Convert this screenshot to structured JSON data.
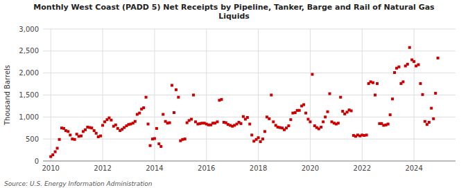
{
  "chart_data": {
    "type": "scatter",
    "title": "Monthly West Coast (PADD 5) Net Receipts by Pipeline, Tanker, Barge and Rail of Natural Gas\nLiquids",
    "y_label": "Thousand Barrels",
    "source": "Source: U.S. Energy Information Administration",
    "color": "#cc0000",
    "marker": "square",
    "grid": true,
    "xlim": [
      2009.7,
      2025.6
    ],
    "xticks": [
      2010,
      2012,
      2014,
      2016,
      2018,
      2020,
      2022,
      2024
    ],
    "ylim": [
      0,
      3000
    ],
    "yticks": [
      0,
      500,
      {
        "value": 1000,
        "label": "1,000"
      },
      {
        "value": 1500,
        "label": "1,500"
      },
      {
        "value": 2000,
        "label": "2,000"
      },
      {
        "value": 2500,
        "label": "2,500"
      },
      {
        "value": 3000,
        "label": "3,000"
      }
    ],
    "x": [
      2010.0,
      2010.08,
      2010.17,
      2010.25,
      2010.33,
      2010.42,
      2010.5,
      2010.58,
      2010.67,
      2010.75,
      2010.83,
      2010.92,
      2011.0,
      2011.08,
      2011.17,
      2011.25,
      2011.33,
      2011.42,
      2011.5,
      2011.58,
      2011.67,
      2011.75,
      2011.83,
      2011.92,
      2012.0,
      2012.08,
      2012.17,
      2012.25,
      2012.33,
      2012.42,
      2012.5,
      2012.58,
      2012.67,
      2012.75,
      2012.83,
      2012.92,
      2013.0,
      2013.08,
      2013.17,
      2013.25,
      2013.33,
      2013.42,
      2013.5,
      2013.58,
      2013.67,
      2013.75,
      2013.83,
      2013.92,
      2014.0,
      2014.08,
      2014.17,
      2014.25,
      2014.33,
      2014.42,
      2014.5,
      2014.58,
      2014.67,
      2014.75,
      2014.83,
      2014.92,
      2015.0,
      2015.08,
      2015.17,
      2015.25,
      2015.33,
      2015.42,
      2015.5,
      2015.58,
      2015.67,
      2015.75,
      2015.83,
      2015.92,
      2016.0,
      2016.08,
      2016.17,
      2016.25,
      2016.33,
      2016.42,
      2016.5,
      2016.58,
      2016.67,
      2016.75,
      2016.83,
      2016.92,
      2017.0,
      2017.08,
      2017.17,
      2017.25,
      2017.33,
      2017.42,
      2017.5,
      2017.58,
      2017.67,
      2017.75,
      2017.83,
      2017.92,
      2018.0,
      2018.08,
      2018.17,
      2018.25,
      2018.33,
      2018.42,
      2018.5,
      2018.58,
      2018.67,
      2018.75,
      2018.83,
      2018.92,
      2019.0,
      2019.08,
      2019.17,
      2019.25,
      2019.33,
      2019.42,
      2019.5,
      2019.58,
      2019.67,
      2019.75,
      2019.83,
      2019.92,
      2020.0,
      2020.08,
      2020.17,
      2020.25,
      2020.33,
      2020.42,
      2020.5,
      2020.58,
      2020.67,
      2020.75,
      2020.83,
      2020.92,
      2021.0,
      2021.08,
      2021.17,
      2021.25,
      2021.33,
      2021.42,
      2021.5,
      2021.58,
      2021.67,
      2021.75,
      2021.83,
      2021.92,
      2022.0,
      2022.08,
      2022.17,
      2022.25,
      2022.33,
      2022.42,
      2022.5,
      2022.58,
      2022.67,
      2022.75,
      2022.83,
      2022.92,
      2023.0,
      2023.08,
      2023.17,
      2023.25,
      2023.33,
      2023.42,
      2023.5,
      2023.58,
      2023.67,
      2023.75,
      2023.83,
      2023.92,
      2024.0,
      2024.08,
      2024.17,
      2024.25,
      2024.33,
      2024.42,
      2024.5,
      2024.58,
      2024.67,
      2024.75,
      2024.83,
      2024.92
    ],
    "values": [
      100,
      140,
      210,
      290,
      490,
      750,
      740,
      690,
      670,
      590,
      500,
      490,
      610,
      560,
      570,
      670,
      710,
      770,
      760,
      750,
      690,
      630,
      550,
      570,
      810,
      890,
      940,
      980,
      930,
      790,
      820,
      740,
      690,
      720,
      760,
      800,
      830,
      840,
      860,
      900,
      1060,
      1090,
      1180,
      1210,
      1450,
      840,
      350,
      500,
      510,
      740,
      390,
      330,
      1060,
      900,
      860,
      870,
      1720,
      1100,
      1620,
      1450,
      460,
      490,
      500,
      870,
      920,
      950,
      1500,
      890,
      840,
      850,
      860,
      860,
      840,
      820,
      820,
      860,
      860,
      890,
      1380,
      1400,
      880,
      870,
      830,
      810,
      790,
      810,
      840,
      880,
      850,
      1010,
      950,
      990,
      840,
      590,
      450,
      490,
      530,
      440,
      500,
      670,
      1000,
      960,
      1500,
      890,
      810,
      770,
      760,
      750,
      710,
      750,
      800,
      940,
      1090,
      1100,
      1150,
      1150,
      1250,
      1280,
      1090,
      950,
      890,
      1970,
      800,
      760,
      730,
      770,
      890,
      1000,
      1120,
      1530,
      890,
      860,
      840,
      860,
      1450,
      1130,
      1070,
      1110,
      1160,
      1140,
      580,
      560,
      590,
      570,
      590,
      580,
      590,
      1760,
      1800,
      1780,
      1500,
      1760,
      850,
      850,
      810,
      820,
      840,
      1050,
      1410,
      2010,
      2110,
      2140,
      1760,
      1800,
      2160,
      2200,
      2580,
      2300,
      2260,
      2160,
      2190,
      1760,
      1510,
      900,
      830,
      880,
      1200,
      960,
      1540,
      2340
    ]
  }
}
